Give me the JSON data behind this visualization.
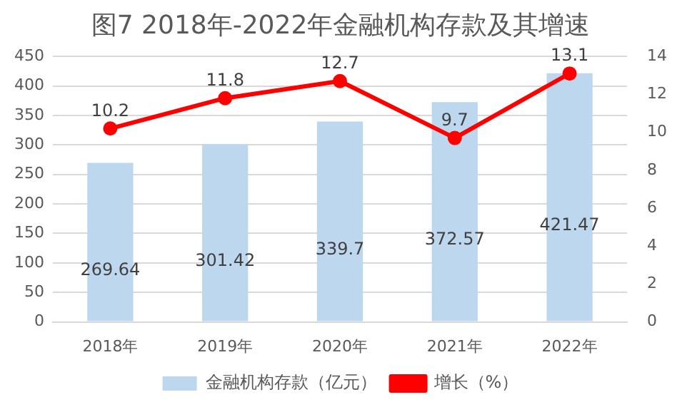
{
  "chart_data": {
    "type": "bar",
    "title": "图7 2018年-2022年金融机构存款及其增速",
    "categories": [
      "2018年",
      "2019年",
      "2020年",
      "2021年",
      "2022年"
    ],
    "series": [
      {
        "name": "金融机构存款（亿元）",
        "color": "#bdd7ee",
        "values": [
          269.64,
          301.42,
          339.7,
          372.57,
          421.47
        ]
      },
      {
        "name": "增长（%）",
        "type": "line",
        "axis": "y2",
        "color": "#ff0000",
        "marker": "circle",
        "values": [
          10.2,
          11.8,
          12.7,
          9.7,
          13.1
        ]
      }
    ],
    "ylim": [
      0,
      450
    ],
    "yticks": [
      0,
      50,
      100,
      150,
      200,
      250,
      300,
      350,
      400,
      450
    ],
    "y2lim": [
      0,
      14
    ],
    "y2ticks": [
      0,
      2,
      4,
      6,
      8,
      10,
      12,
      14
    ],
    "grid": "y",
    "legend": "bottom",
    "data_labels": true
  }
}
